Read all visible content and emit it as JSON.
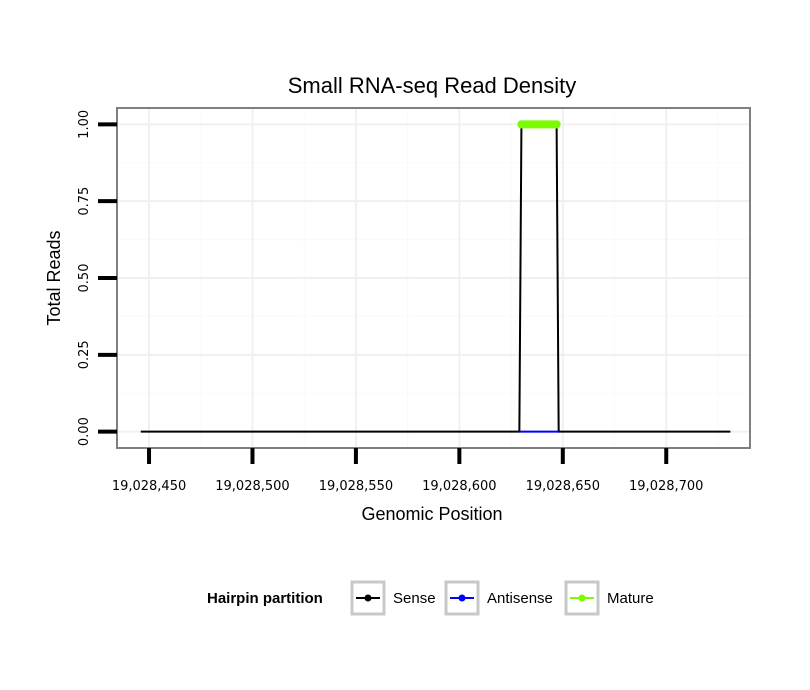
{
  "chart_data": {
    "type": "line",
    "title": "Small RNA-seq Read Density",
    "xlabel": "Genomic Position",
    "ylabel": "Total Reads",
    "xlim": [
      19028435,
      19028740
    ],
    "ylim": [
      -0.05,
      1.05
    ],
    "x_ticks": [
      19028450,
      19028500,
      19028550,
      19028600,
      19028650,
      19028700
    ],
    "x_tick_labels": [
      "19,028,450",
      "19,028,500",
      "19,028,550",
      "19,028,600",
      "19,028,650",
      "19,028,700"
    ],
    "y_ticks": [
      0,
      0.25,
      0.5,
      0.75,
      1.0
    ],
    "y_tick_labels": [
      "0.00",
      "0.25",
      "0.50",
      "0.75",
      "1.00"
    ],
    "grid": true,
    "legend_position": "bottom",
    "legend_title": "Hairpin partition",
    "series": [
      {
        "name": "Sense",
        "color": "#000000",
        "x": [
          19028446,
          19028629,
          19028630,
          19028647,
          19028648,
          19028731
        ],
        "y": [
          0,
          0,
          1,
          1,
          0,
          0
        ]
      },
      {
        "name": "Antisense",
        "color": "#0000ff",
        "x": [
          19028629,
          19028648
        ],
        "y": [
          0,
          0
        ]
      },
      {
        "name": "Mature",
        "color": "#7cfc00",
        "x": [
          19028630,
          19028647
        ],
        "y": [
          1,
          1
        ]
      }
    ]
  }
}
